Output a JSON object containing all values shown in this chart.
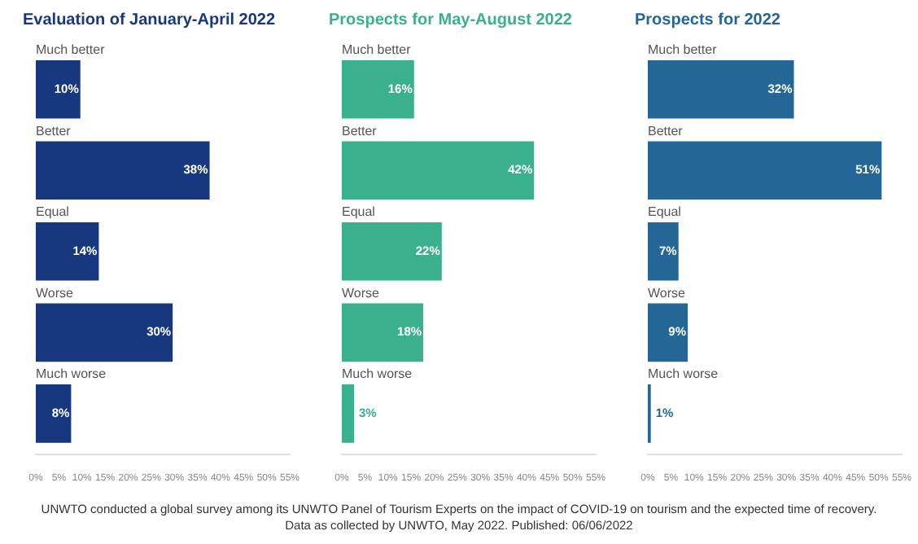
{
  "chart_data": [
    {
      "type": "bar",
      "orientation": "horizontal",
      "title": "Evaluation of January-April 2022",
      "categories": [
        "Much better",
        "Better",
        "Equal",
        "Worse",
        "Much worse"
      ],
      "series": [
        {
          "color": "#17387e",
          "values": [
            10,
            38,
            14,
            30,
            8
          ],
          "value_labels": [
            "10%",
            "38%",
            "14%",
            "30%",
            "8%"
          ]
        }
      ],
      "xlim": [
        0,
        55
      ],
      "xticks": [
        {
          "value": 0,
          "label": "0%"
        },
        {
          "value": 5,
          "label": "5%"
        },
        {
          "value": 10,
          "label": "10%"
        },
        {
          "value": 15,
          "label": "15%"
        },
        {
          "value": 20,
          "label": "20%"
        },
        {
          "value": 25,
          "label": "25%"
        },
        {
          "value": 30,
          "label": "30%"
        },
        {
          "value": 35,
          "label": "35%"
        },
        {
          "value": 40,
          "label": "40%"
        },
        {
          "value": 45,
          "label": "45%"
        },
        {
          "value": 50,
          "label": "50%"
        },
        {
          "value": 55,
          "label": "55%"
        }
      ],
      "grid": false,
      "legend": false,
      "annotations": [
        "UNWTO conducted a global survey among its UNWTO Panel of Tourism Experts on the impact of COVID-19 on tourism and the expected time of recovery.",
        "Data as collected by UNWTO, May 2022. Published: 06/06/2022"
      ]
    },
    {
      "type": "bar",
      "orientation": "horizontal",
      "title": "Prospects for May-August 2022",
      "categories": [
        "Much better",
        "Better",
        "Equal",
        "Worse",
        "Much worse"
      ],
      "series": [
        {
          "color": "#3bb08c",
          "values": [
            16,
            42,
            22,
            18,
            3
          ],
          "value_labels": [
            "16%",
            "42%",
            "22%",
            "18%",
            "3%"
          ]
        }
      ],
      "xlim": [
        0,
        55
      ],
      "xticks": [
        {
          "value": 0,
          "label": "0%"
        },
        {
          "value": 5,
          "label": "5%"
        },
        {
          "value": 10,
          "label": "10%"
        },
        {
          "value": 15,
          "label": "15%"
        },
        {
          "value": 20,
          "label": "20%"
        },
        {
          "value": 25,
          "label": "25%"
        },
        {
          "value": 30,
          "label": "30%"
        },
        {
          "value": 35,
          "label": "35%"
        },
        {
          "value": 40,
          "label": "40%"
        },
        {
          "value": 45,
          "label": "45%"
        },
        {
          "value": 50,
          "label": "50%"
        },
        {
          "value": 55,
          "label": "55%"
        }
      ],
      "grid": false,
      "legend": false
    },
    {
      "type": "bar",
      "orientation": "horizontal",
      "title": "Prospects for 2022",
      "categories": [
        "Much better",
        "Better",
        "Equal",
        "Worse",
        "Much worse"
      ],
      "series": [
        {
          "color": "#246797",
          "values": [
            32,
            51,
            7,
            9,
            1
          ],
          "value_labels": [
            "32%",
            "51%",
            "7%",
            "9%",
            "1%"
          ]
        }
      ],
      "xlim": [
        0,
        55
      ],
      "xticks": [
        {
          "value": 0,
          "label": "0%"
        },
        {
          "value": 5,
          "label": "5%"
        },
        {
          "value": 10,
          "label": "10%"
        },
        {
          "value": 15,
          "label": "15%"
        },
        {
          "value": 20,
          "label": "20%"
        },
        {
          "value": 25,
          "label": "25%"
        },
        {
          "value": 30,
          "label": "30%"
        },
        {
          "value": 35,
          "label": "35%"
        },
        {
          "value": 40,
          "label": "40%"
        },
        {
          "value": 45,
          "label": "45%"
        },
        {
          "value": 50,
          "label": "50%"
        },
        {
          "value": 55,
          "label": "55%"
        }
      ],
      "grid": false,
      "legend": false
    }
  ]
}
